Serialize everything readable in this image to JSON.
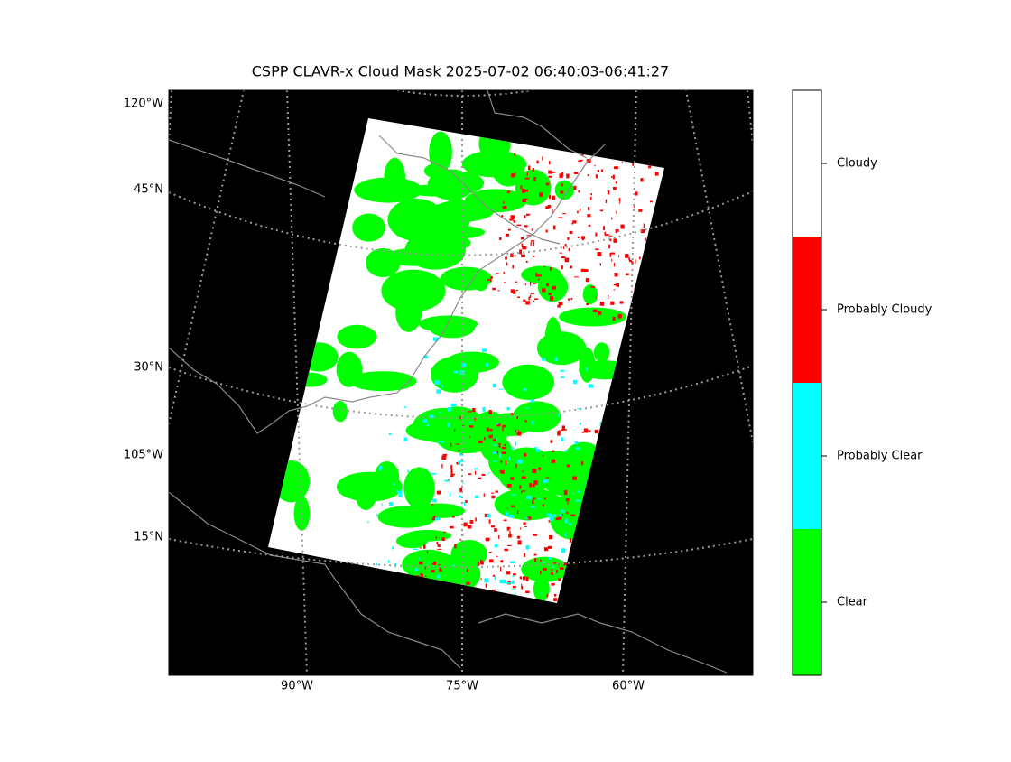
{
  "title": "CSPP CLAVR-x Cloud Mask 2025-07-02 06:40:03-06:41:27",
  "map": {
    "left_labels": [
      "120°W",
      "45°N",
      "30°N",
      "105°W",
      "15°N"
    ],
    "bottom_labels": [
      "90°W",
      "75°W",
      "60°W"
    ]
  },
  "colorbar": {
    "categories": [
      "Clear",
      "Probably Clear",
      "Probably Cloudy",
      "Cloudy"
    ],
    "colors": [
      "#00ff00",
      "#00ffff",
      "#ff0000",
      "#ffffff"
    ]
  }
}
